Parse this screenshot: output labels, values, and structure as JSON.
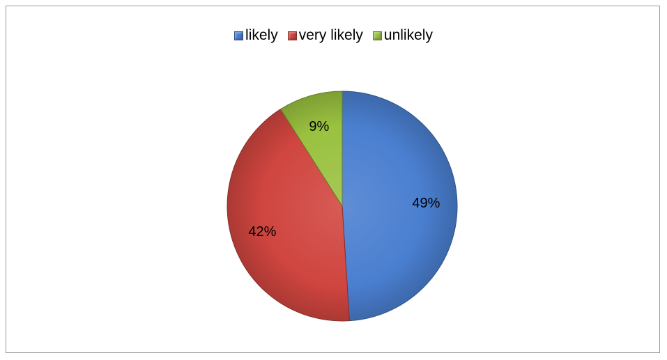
{
  "chart_data": {
    "type": "pie",
    "categories": [
      "likely",
      "very likely",
      "unlikely"
    ],
    "values": [
      49,
      42,
      9
    ],
    "data_labels": [
      "49%",
      "42%",
      "9%"
    ],
    "colors": [
      "#4a7fd0",
      "#d0453f",
      "#9ac13f"
    ],
    "legend": [
      "likely",
      "very likely",
      "unlikely"
    ],
    "legend_position": "top",
    "title": "",
    "start_angle_deg": 0,
    "direction": "clockwise"
  }
}
